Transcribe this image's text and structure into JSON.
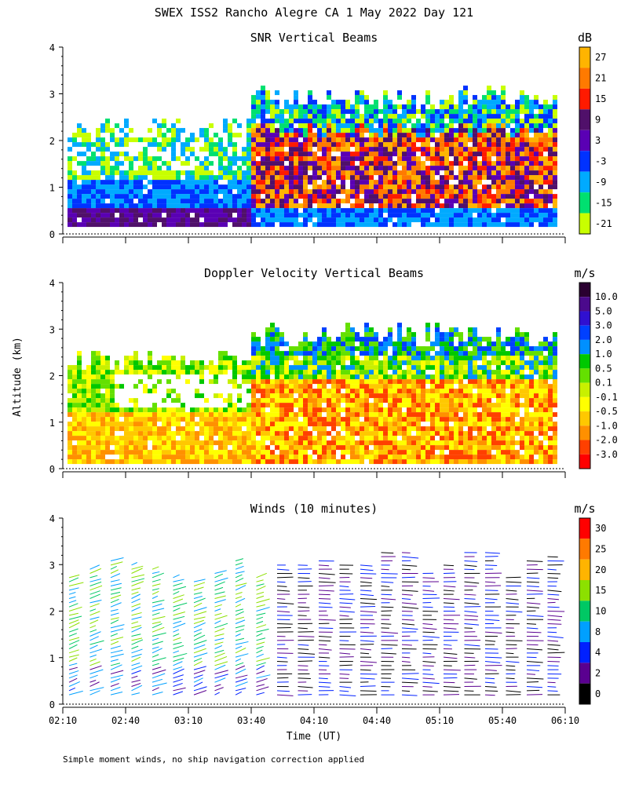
{
  "figure": {
    "title": "SWEX ISS2 Rancho Alegre CA   1 May 2022 Day 121",
    "y_axis_label": "Altitude (km)",
    "x_axis_label": "Time (UT)",
    "footnote": "Simple moment winds, no ship navigation correction applied",
    "x_ticks": [
      "02:10",
      "02:40",
      "03:10",
      "03:40",
      "04:10",
      "04:40",
      "05:10",
      "05:40",
      "06:10"
    ],
    "y_ticks": [
      "0",
      "1",
      "2",
      "3",
      "4"
    ]
  },
  "chart_data": [
    {
      "type": "heatmap",
      "title": "SNR Vertical Beams",
      "unit": "dB",
      "x_range": [
        "02:10",
        "06:10"
      ],
      "y_range": [
        0,
        4
      ],
      "colorbar": {
        "labels": [
          "27",
          "21",
          "15",
          "9",
          "3",
          "-3",
          "-9",
          "-15",
          "-21"
        ],
        "colors": [
          "#ffb400",
          "#ff7a00",
          "#ff1a00",
          "#50106a",
          "#5a00b4",
          "#0032ff",
          "#00aaff",
          "#00e070",
          "#c8ff00"
        ]
      }
    },
    {
      "type": "heatmap",
      "title": "Doppler Velocity Vertical Beams",
      "unit": "m/s",
      "x_range": [
        "02:10",
        "06:10"
      ],
      "y_range": [
        0,
        4
      ],
      "colorbar": {
        "labels": [
          "10.0",
          "5.0",
          "3.0",
          "2.0",
          "1.0",
          "0.5",
          "0.1",
          "-0.1",
          "-0.5",
          "-1.0",
          "-2.0",
          "-3.0"
        ],
        "colors": [
          "#2a0030",
          "#4b0a8c",
          "#3010d0",
          "#0040ff",
          "#0090ff",
          "#00c800",
          "#64e000",
          "#c8f000",
          "#ffff00",
          "#ffc800",
          "#ff9000",
          "#ff4000",
          "#ff0000"
        ]
      }
    },
    {
      "type": "scatter",
      "title": "Winds (10 minutes)",
      "unit": "m/s",
      "x_range": [
        "02:10",
        "06:10"
      ],
      "y_range": [
        0,
        4
      ],
      "colorbar": {
        "labels": [
          "30",
          "25",
          "20",
          "15",
          "10",
          "8",
          "4",
          "2",
          "0"
        ],
        "colors": [
          "#ff0000",
          "#ff7a00",
          "#ffb400",
          "#8ce000",
          "#00c864",
          "#00a0ff",
          "#0020ff",
          "#5a0090",
          "#000000"
        ]
      }
    }
  ]
}
